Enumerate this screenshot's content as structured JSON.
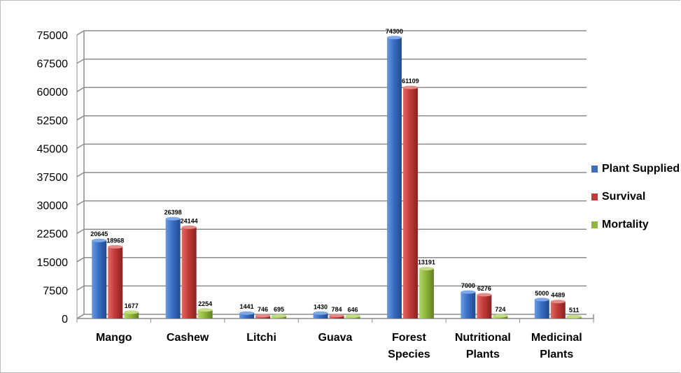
{
  "chart_data": {
    "type": "bar",
    "categories": [
      "Mango",
      "Cashew",
      "Litchi",
      "Guava",
      "Forest Species",
      "Nutritional Plants",
      "Medicinal Plants"
    ],
    "series": [
      {
        "name": "Plant Supplied",
        "color": "#3a6fc4",
        "values": [
          20645,
          26398,
          1441,
          1430,
          74300,
          7000,
          5000
        ]
      },
      {
        "name": "Survival",
        "color": "#c23b38",
        "values": [
          18968,
          24144,
          746,
          784,
          61109,
          6276,
          4489
        ]
      },
      {
        "name": "Mortality",
        "color": "#8fb83a",
        "values": [
          1677,
          2254,
          695,
          646,
          13191,
          724,
          511
        ]
      }
    ],
    "yticks": [
      0,
      7500,
      15000,
      22500,
      30000,
      37500,
      45000,
      52500,
      60000,
      67500,
      75000
    ],
    "ylim": [
      0,
      75000
    ],
    "grid": true,
    "legend_position": "right",
    "title": "",
    "xlabel": "",
    "ylabel": ""
  }
}
